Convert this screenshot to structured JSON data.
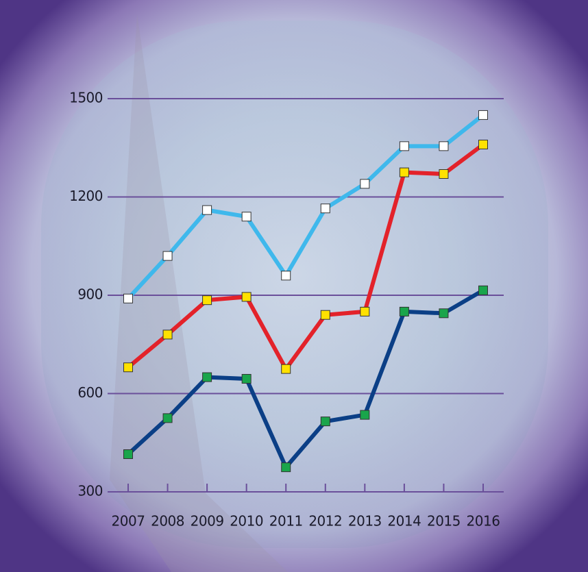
{
  "chart_data": {
    "type": "line",
    "categories": [
      "2007",
      "2008",
      "2009",
      "2010",
      "2011",
      "2012",
      "2013",
      "2014",
      "2015",
      "2016"
    ],
    "series": [
      {
        "color": "#3fb8ec",
        "marker_color": "#ffffff",
        "values": [
          890,
          1020,
          1160,
          1140,
          960,
          1165,
          1240,
          1355,
          1355,
          1450
        ]
      },
      {
        "color": "#e3222a",
        "marker_color": "#ffe100",
        "values": [
          680,
          780,
          885,
          895,
          675,
          840,
          850,
          1275,
          1270,
          1360
        ]
      },
      {
        "color": "#0b3f86",
        "marker_color": "#1aa54b",
        "values": [
          415,
          525,
          650,
          645,
          375,
          515,
          535,
          850,
          845,
          915
        ]
      }
    ],
    "ylim": [
      300,
      1500
    ],
    "yticks": [
      300,
      600,
      900,
      1200,
      1500
    ],
    "grid": true
  }
}
